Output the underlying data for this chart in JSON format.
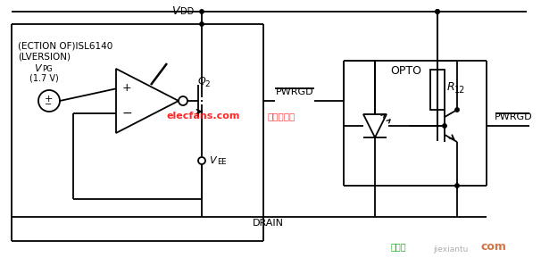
{
  "bg_color": "#ffffff",
  "line_color": "#000000",
  "watermark1": "elecfans.com",
  "watermark1_color": "#ff0000",
  "watermark2": "电子发烧友",
  "watermark2_color": "#ff0000",
  "watermark3": "接线图",
  "watermark3_color": "#00aa00",
  "watermark4": "jiexiantu",
  "watermark4_color": "#999999",
  "watermark5": "com",
  "watermark5_color": "#cc6633",
  "label_ISL": "(ECTION OF)ISL6140",
  "label_LVER": "(LVERSION)",
  "label_17V": "(1.7 V)",
  "label_DRAIN": "DRAIN",
  "label_PWRGD": "PWRGD",
  "label_OPTO": "OPTO",
  "label_R12": "R",
  "label_R12_sub": "12"
}
